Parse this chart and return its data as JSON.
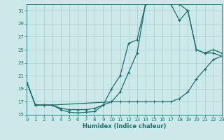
{
  "xlabel": "Humidex (Indice chaleur)",
  "bg_color": "#cde8e8",
  "grid_color": "#aacccc",
  "line_color": "#1a7070",
  "xmin": 0,
  "xmax": 23,
  "ymin": 15,
  "ymax": 32,
  "yticks": [
    15,
    17,
    19,
    21,
    23,
    25,
    27,
    29,
    31
  ],
  "xticks": [
    0,
    1,
    2,
    3,
    4,
    5,
    6,
    7,
    8,
    9,
    10,
    11,
    12,
    13,
    14,
    15,
    16,
    17,
    18,
    19,
    20,
    21,
    22,
    23
  ],
  "line1_x": [
    0,
    1,
    2,
    3,
    4,
    5,
    6,
    7,
    8,
    9,
    10,
    11,
    12,
    13,
    14,
    15,
    16,
    17,
    18,
    19,
    20,
    21,
    22,
    23
  ],
  "line1_y": [
    20.0,
    16.5,
    16.5,
    16.5,
    15.8,
    15.4,
    15.3,
    15.4,
    15.5,
    16.5,
    17.0,
    17.0,
    17.0,
    17.0,
    17.0,
    17.0,
    17.0,
    17.0,
    17.5,
    18.5,
    20.5,
    22.0,
    23.5,
    24.0
  ],
  "line2_x": [
    0,
    1,
    2,
    3,
    4,
    5,
    6,
    7,
    8,
    9,
    10,
    11,
    12,
    13,
    14,
    15,
    16,
    17,
    18,
    19,
    20,
    21,
    22,
    23
  ],
  "line2_y": [
    20.0,
    16.5,
    16.5,
    16.5,
    16.0,
    15.8,
    15.8,
    15.8,
    16.0,
    16.5,
    19.0,
    21.0,
    26.0,
    26.5,
    32.0,
    32.5,
    32.5,
    32.0,
    29.5,
    31.0,
    25.0,
    24.5,
    25.0,
    24.5
  ],
  "line3_x": [
    0,
    1,
    2,
    3,
    10,
    11,
    12,
    13,
    14,
    15,
    16,
    17,
    18,
    19,
    20,
    21,
    22,
    23
  ],
  "line3_y": [
    20.0,
    16.5,
    16.5,
    16.5,
    17.0,
    18.5,
    21.5,
    24.5,
    32.0,
    32.5,
    32.5,
    32.5,
    32.0,
    31.0,
    25.0,
    24.5,
    24.5,
    24.0
  ]
}
